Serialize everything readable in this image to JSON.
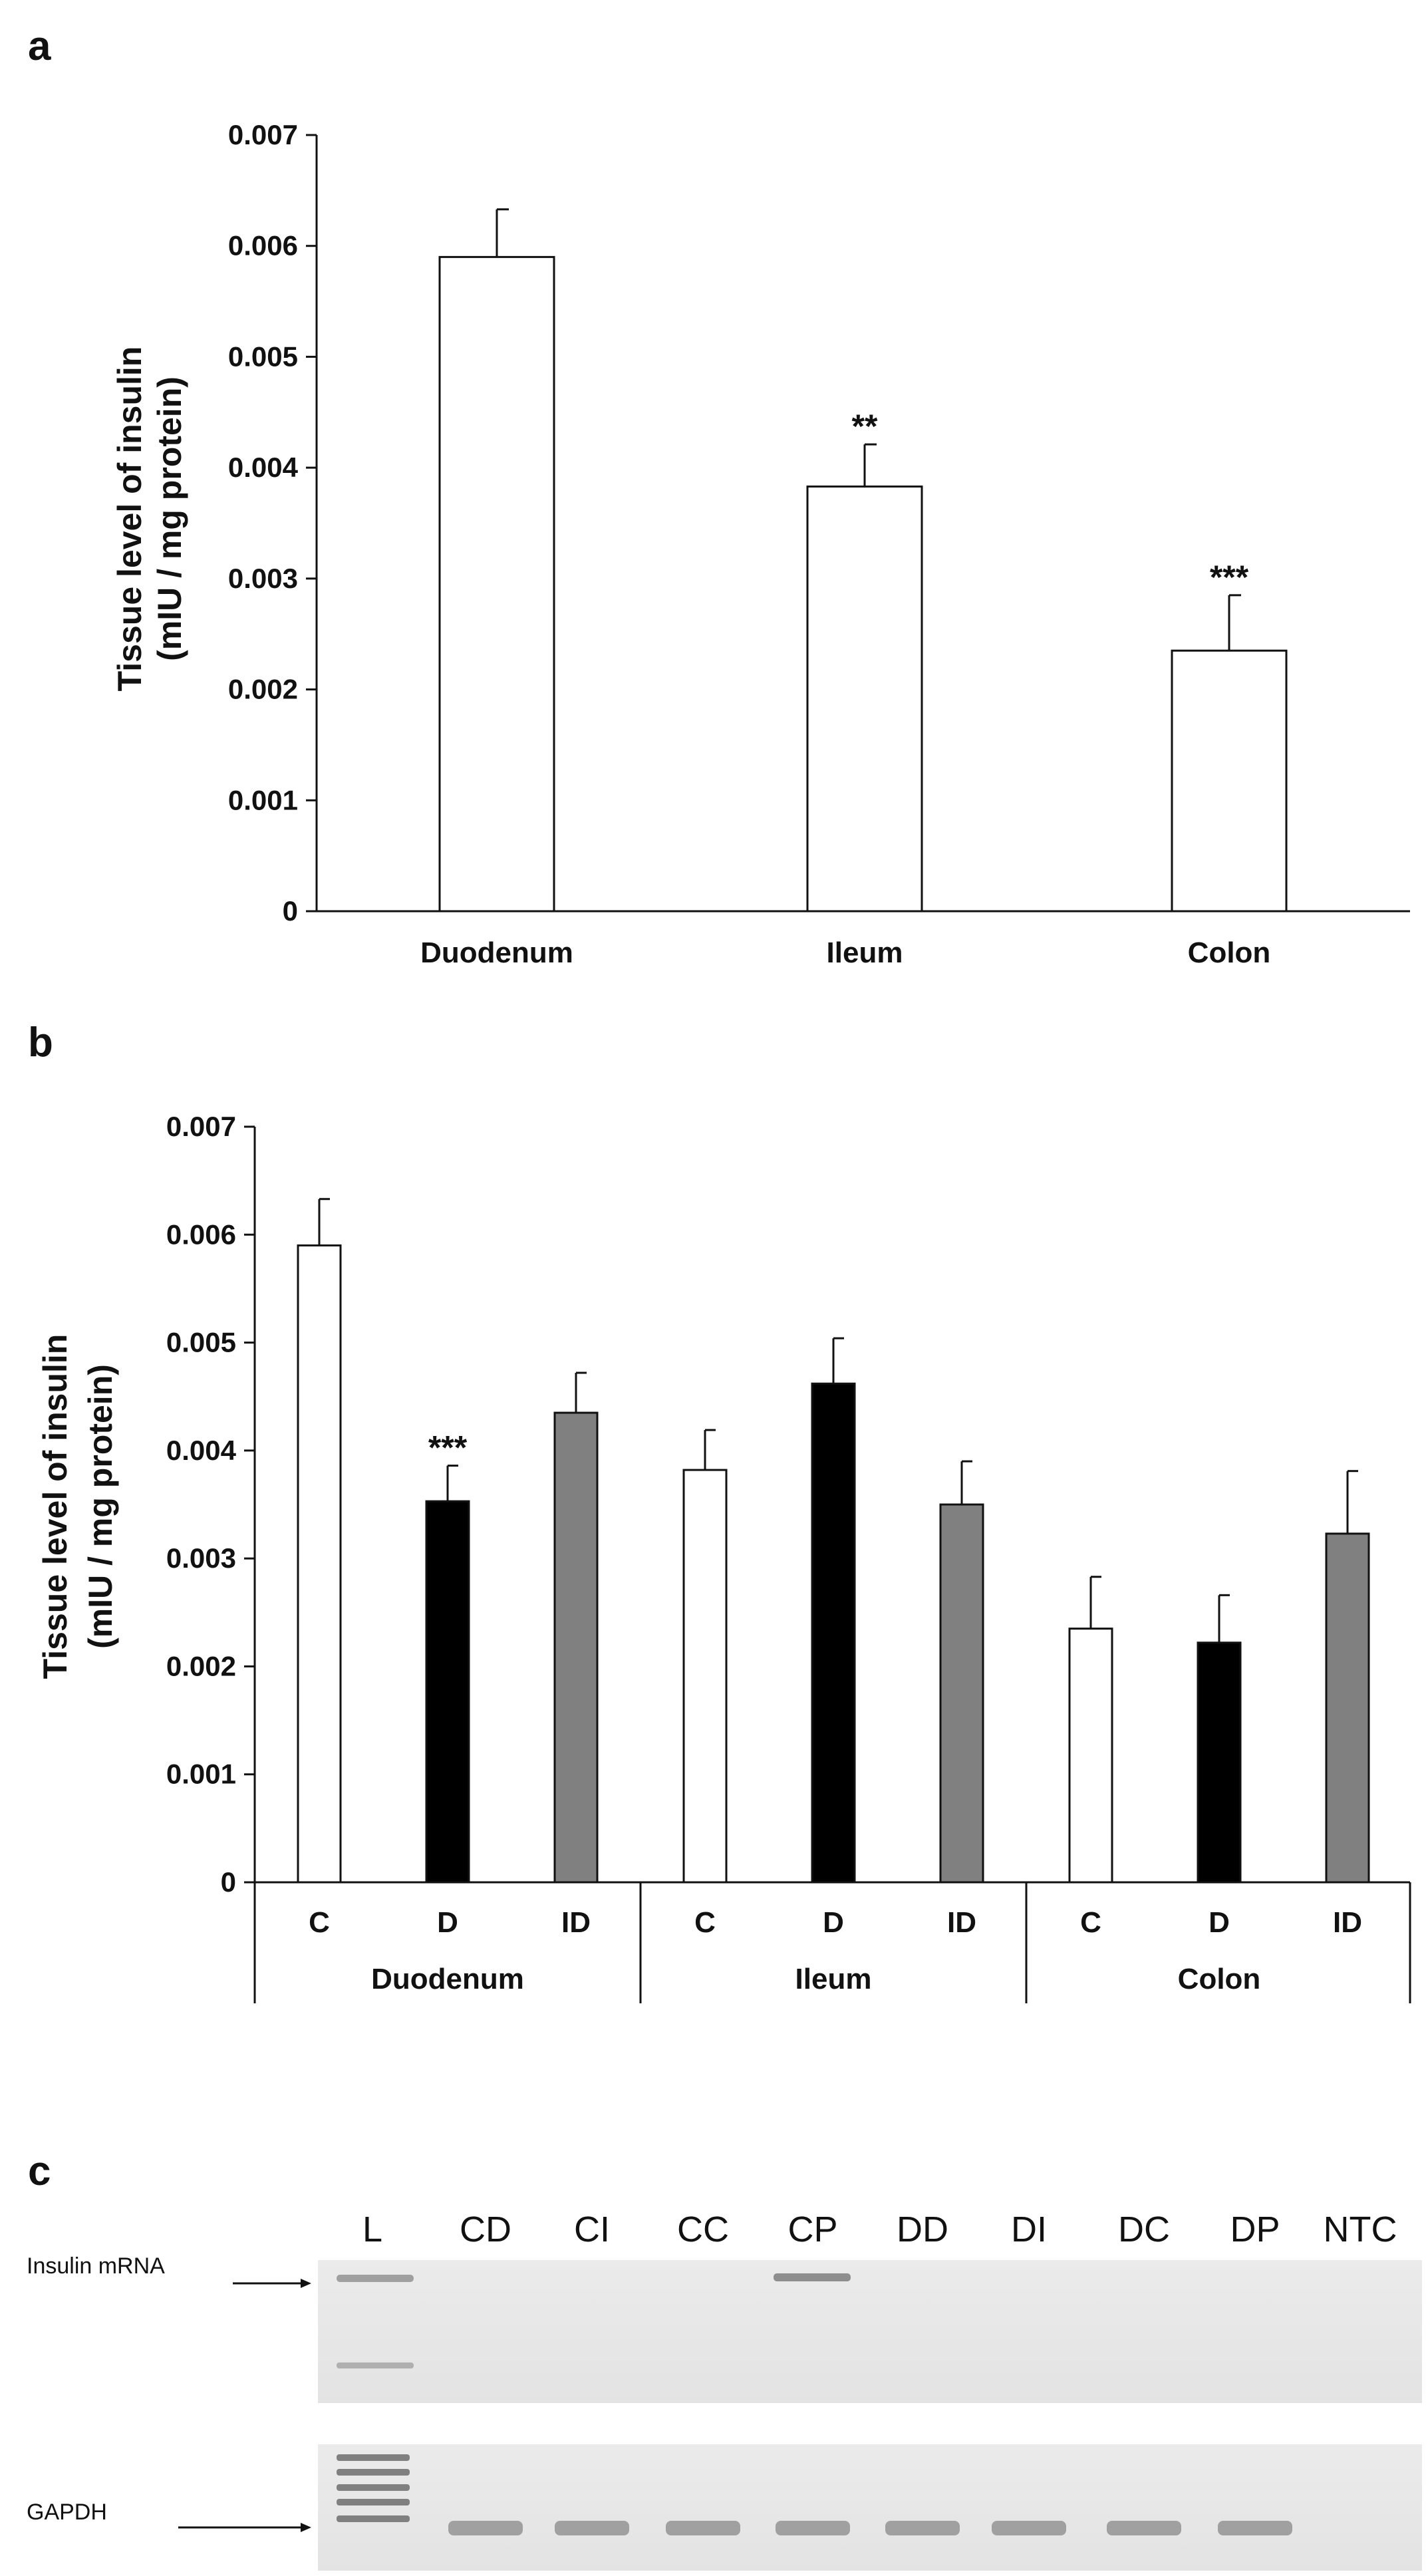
{
  "chart_data": [
    {
      "panel": "a",
      "type": "bar",
      "ylabel_line1": "Tissue level of insulin",
      "ylabel_line2": "(mIU / mg protein)",
      "ylim": [
        0,
        0.007
      ],
      "yticks": [
        "0",
        "0.001",
        "0.002",
        "0.003",
        "0.004",
        "0.005",
        "0.006",
        "0.007"
      ],
      "categories": [
        "Duodenum",
        "Ileum",
        "Colon"
      ],
      "values": [
        0.0059,
        0.00383,
        0.00235
      ],
      "errors": [
        0.00043,
        0.00038,
        0.0005
      ],
      "significance": [
        "",
        "**",
        "***"
      ],
      "bar_color": "#ffffff"
    },
    {
      "panel": "b",
      "type": "bar",
      "ylabel_line1": "Tissue level of insulin",
      "ylabel_line2": "(mIU / mg protein)",
      "ylim": [
        0,
        0.007
      ],
      "yticks": [
        "0",
        "0.001",
        "0.002",
        "0.003",
        "0.004",
        "0.005",
        "0.006",
        "0.007"
      ],
      "groups": [
        "Duodenum",
        "Ileum",
        "Colon"
      ],
      "subcategories": [
        "C",
        "D",
        "ID"
      ],
      "colors": {
        "C": "#ffffff",
        "D": "#000000",
        "ID": "#808080"
      },
      "values": [
        [
          0.0059,
          0.00353,
          0.00435
        ],
        [
          0.00382,
          0.00462,
          0.0035
        ],
        [
          0.00235,
          0.00222,
          0.00323
        ]
      ],
      "errors": [
        [
          0.00043,
          0.00033,
          0.00037
        ],
        [
          0.00037,
          0.00042,
          0.0004
        ],
        [
          0.00048,
          0.00044,
          0.00058
        ]
      ],
      "significance": [
        [
          "",
          "***",
          ""
        ],
        [
          "",
          "",
          ""
        ],
        [
          "",
          "",
          ""
        ]
      ]
    }
  ],
  "panel_c": {
    "letter": "c",
    "lanes": [
      "L",
      "CD",
      "CI",
      "CC",
      "CP",
      "DD",
      "DI",
      "DC",
      "DP",
      "NTC"
    ],
    "row1_label": "Insulin mRNA",
    "row2_label": "GAPDH"
  }
}
